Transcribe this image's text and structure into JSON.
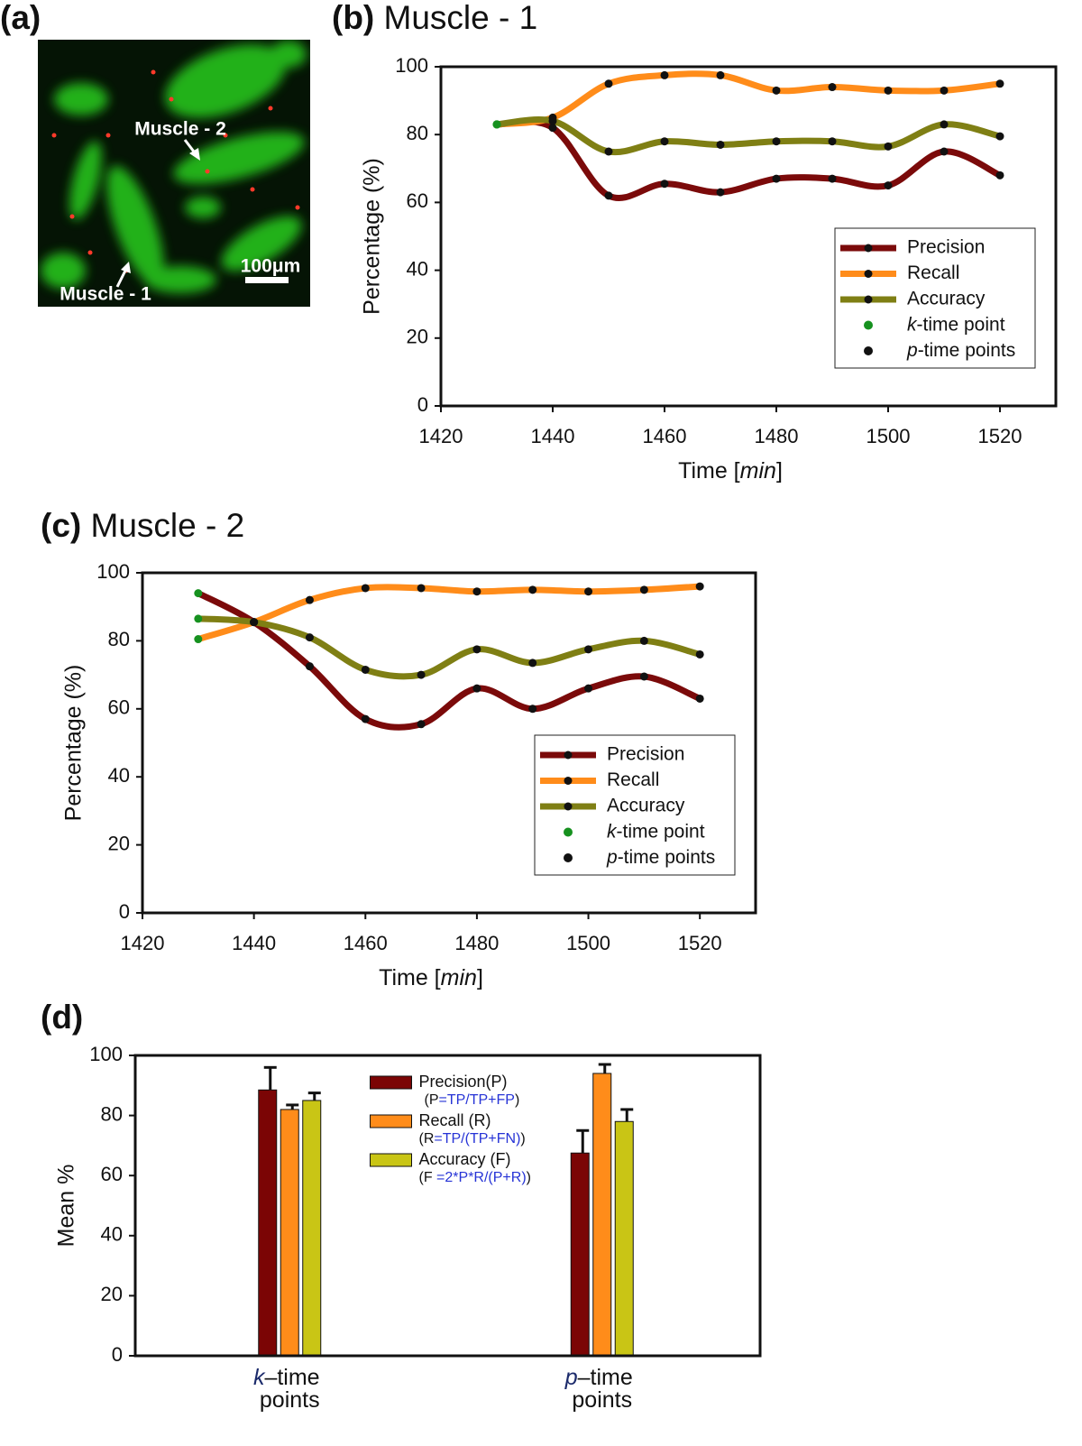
{
  "panel_a": {
    "label": "(a)",
    "annotations": [
      "Muscle - 2",
      "Muscle - 1"
    ],
    "scale_bar": "100μm"
  },
  "chart_data": [
    {
      "type": "line",
      "panel": "(b)",
      "title": "Muscle - 1",
      "xlabel": "Time [min]",
      "ylabel": "Percentage (%)",
      "x": [
        1430,
        1440,
        1450,
        1460,
        1470,
        1480,
        1490,
        1500,
        1510,
        1520
      ],
      "series": [
        {
          "name": "Precision",
          "color": "#7b0a0a",
          "values": [
            83,
            82,
            62,
            65.5,
            63,
            67,
            67,
            65,
            75,
            68
          ]
        },
        {
          "name": "Recall",
          "color": "#ff8c1a",
          "values": [
            83,
            85,
            95,
            97.5,
            97.5,
            93,
            94,
            93,
            93,
            95
          ]
        },
        {
          "name": "Accuracy",
          "color": "#7f7f14",
          "values": [
            83,
            84,
            75,
            78,
            77,
            78,
            78,
            76.5,
            83,
            79.5
          ]
        }
      ],
      "markers": [
        {
          "name": "k-time point",
          "color": "#16911f"
        },
        {
          "name": "p-time points",
          "color": "#111111"
        }
      ],
      "xlim": [
        1420,
        1530
      ],
      "xticks": [
        1420,
        1440,
        1460,
        1480,
        1500,
        1520
      ],
      "ylim": [
        0,
        100
      ],
      "yticks": [
        0,
        20,
        40,
        60,
        80,
        100
      ],
      "legend": "lower right"
    },
    {
      "type": "line",
      "panel": "(c)",
      "title": "Muscle - 2",
      "xlabel": "Time [min]",
      "ylabel": "Percentage (%)",
      "x": [
        1430,
        1440,
        1450,
        1460,
        1470,
        1480,
        1490,
        1500,
        1510,
        1520
      ],
      "series": [
        {
          "name": "Precision",
          "color": "#7b0a0a",
          "values": [
            94,
            85.5,
            72.5,
            57,
            55.5,
            66,
            60,
            66,
            69.5,
            63
          ]
        },
        {
          "name": "Recall",
          "color": "#ff8c1a",
          "values": [
            80.5,
            85.5,
            92,
            95.5,
            95.5,
            94.5,
            95,
            94.5,
            95,
            96
          ]
        },
        {
          "name": "Accuracy",
          "color": "#7f7f14",
          "values": [
            86.5,
            85.5,
            81,
            71.5,
            70,
            77.5,
            73.5,
            77.5,
            80,
            76
          ]
        }
      ],
      "markers": [
        {
          "name": "k-time point",
          "color": "#16911f"
        },
        {
          "name": "p-time points",
          "color": "#111111"
        }
      ],
      "xlim": [
        1420,
        1530
      ],
      "xticks": [
        1420,
        1440,
        1460,
        1480,
        1500,
        1520
      ],
      "ylim": [
        0,
        100
      ],
      "yticks": [
        0,
        20,
        40,
        60,
        80,
        100
      ],
      "legend": "lower right"
    },
    {
      "type": "bar",
      "panel": "(d)",
      "ylabel": "Mean %",
      "categories": [
        "k–time points",
        "p–time points"
      ],
      "series": [
        {
          "name": "Precision(P)",
          "note": "(P=TP/TP+FP)",
          "color": "#7b0505",
          "values": [
            88.5,
            67.5
          ],
          "errors": [
            7.5,
            7.5
          ]
        },
        {
          "name": "Recall (R)",
          "note": "(R=TP/(TP+FN))",
          "color": "#ff8c1a",
          "values": [
            82,
            94
          ],
          "errors": [
            1.5,
            3
          ]
        },
        {
          "name": "Accuracy (F)",
          "note": "(F =2*P*R/(P+R))",
          "color": "#c9c515",
          "values": [
            85,
            78
          ],
          "errors": [
            2.5,
            4
          ]
        }
      ],
      "ylim": [
        0,
        100
      ],
      "yticks": [
        0,
        20,
        40,
        60,
        80,
        100
      ],
      "legend": "upper center"
    }
  ]
}
